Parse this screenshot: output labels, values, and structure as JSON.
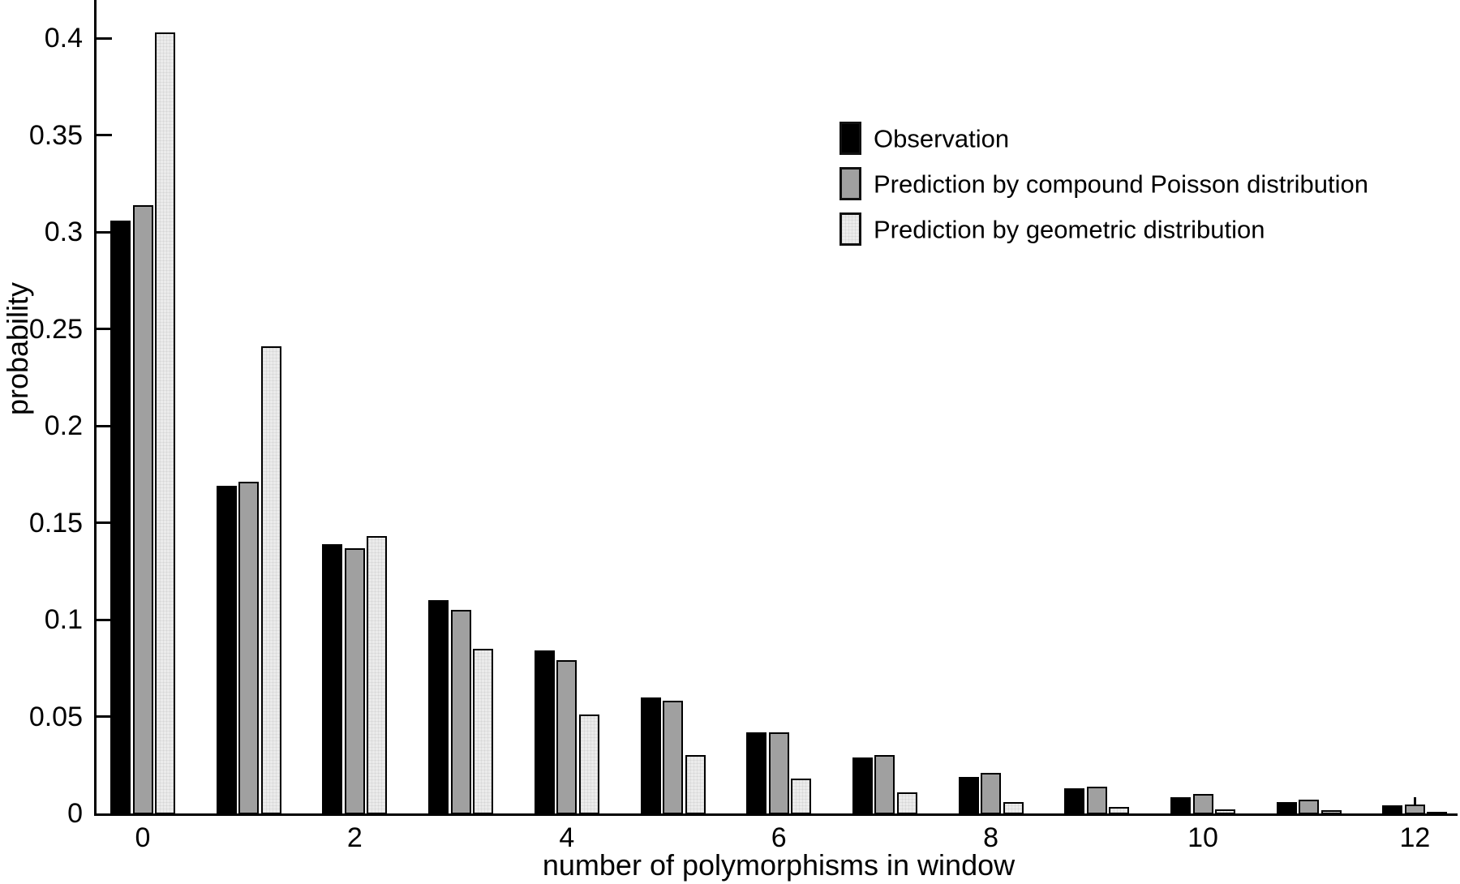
{
  "chart_data": {
    "type": "bar",
    "title": "",
    "xlabel": "number of polymorphisms in window",
    "ylabel": "probability",
    "categories": [
      0,
      1,
      2,
      3,
      4,
      5,
      6,
      7,
      8,
      9,
      10,
      11,
      12
    ],
    "x_tick_values": [
      0,
      2,
      4,
      6,
      8,
      10,
      12
    ],
    "x_tick_labels": [
      "0",
      "2",
      "4",
      "6",
      "8",
      "10",
      "12"
    ],
    "y_tick_values": [
      0,
      0.05,
      0.1,
      0.15,
      0.2,
      0.25,
      0.3,
      0.35,
      0.4
    ],
    "y_tick_labels": [
      "0",
      "0.05",
      "0.1",
      "0.15",
      "0.2",
      "0.25",
      "0.3",
      "0.35",
      "0.4"
    ],
    "ylim": [
      0,
      0.42
    ],
    "grid": false,
    "legend_position": "upper-right-inside",
    "series": [
      {
        "name": "Observation",
        "color": "#000000",
        "textured": false,
        "values": [
          0.306,
          0.169,
          0.139,
          0.11,
          0.084,
          0.06,
          0.042,
          0.029,
          0.019,
          0.013,
          0.0085,
          0.006,
          0.004
        ]
      },
      {
        "name": "Prediction by compound Poisson distribution",
        "color": "#a0a0a0",
        "textured": false,
        "values": [
          0.314,
          0.171,
          0.137,
          0.105,
          0.079,
          0.058,
          0.042,
          0.03,
          0.021,
          0.014,
          0.01,
          0.007,
          0.0045
        ]
      },
      {
        "name": "Prediction by geometric distribution",
        "color": "#ebebeb",
        "textured": true,
        "values": [
          0.403,
          0.241,
          0.143,
          0.085,
          0.051,
          0.03,
          0.018,
          0.011,
          0.006,
          0.0035,
          0.002,
          0.0015,
          0.001
        ]
      }
    ],
    "colors": {
      "axis": "#000000",
      "background": "#ffffff",
      "bar_border": "#000000"
    }
  }
}
